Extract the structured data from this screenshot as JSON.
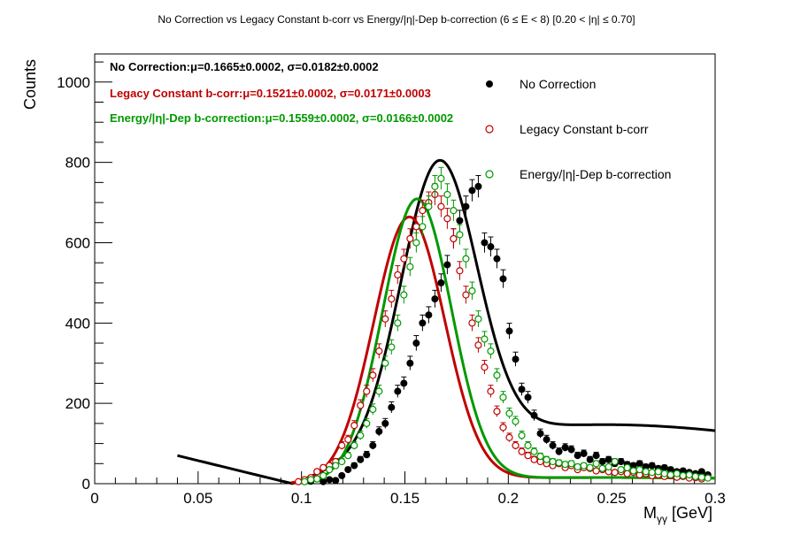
{
  "chart_data": {
    "type": "scatter",
    "title": "No Correction vs Legacy Constant b-corr vs Energy/|η|-Dep b-correction   (6 ≤ E < 8)   [0.20 < |η| ≤ 0.70]",
    "xlabel": "M",
    "xlabel_sub": "γγ",
    "xlabel_unit": " [GeV]",
    "ylabel": "Counts",
    "xlim": [
      0,
      0.3
    ],
    "ylim": [
      0,
      1070
    ],
    "x_ticks": [
      {
        "value": 0,
        "label": "0"
      },
      {
        "value": 0.05,
        "label": "0.05"
      },
      {
        "value": 0.1,
        "label": "0.1"
      },
      {
        "value": 0.15,
        "label": "0.15"
      },
      {
        "value": 0.2,
        "label": "0.2"
      },
      {
        "value": 0.25,
        "label": "0.25"
      },
      {
        "value": 0.3,
        "label": "0.3"
      }
    ],
    "y_ticks": [
      {
        "value": 0,
        "label": "0"
      },
      {
        "value": 200,
        "label": "200"
      },
      {
        "value": 400,
        "label": "400"
      },
      {
        "value": 600,
        "label": "600"
      },
      {
        "value": 800,
        "label": "800"
      },
      {
        "value": 1000,
        "label": "1000"
      }
    ],
    "legend_position": "top-right",
    "series": [
      {
        "name": "No Correction",
        "color": "#000000",
        "marker": "filled-circle",
        "stat_label": "No Correction:",
        "stat_mu": "μ=0.1665±0.0002, ",
        "stat_sigma": "σ=0.0182±0.0002",
        "fit": {
          "amp": 700,
          "mu": 0.1665,
          "sigma": 0.0182,
          "bkg_a0": 240,
          "bkg_a1": -440,
          "bkg_x0": 0.0956,
          "bkg_x1": 0.3,
          "x_start": 0.04,
          "x_end": 0.3
        },
        "points": [
          {
            "x": 0.1015,
            "y": 8
          },
          {
            "x": 0.1045,
            "y": 6
          },
          {
            "x": 0.1075,
            "y": 12
          },
          {
            "x": 0.1105,
            "y": 5
          },
          {
            "x": 0.1135,
            "y": 10
          },
          {
            "x": 0.1165,
            "y": 8
          },
          {
            "x": 0.1195,
            "y": 20
          },
          {
            "x": 0.1225,
            "y": 35
          },
          {
            "x": 0.1255,
            "y": 45
          },
          {
            "x": 0.1285,
            "y": 60
          },
          {
            "x": 0.1315,
            "y": 72
          },
          {
            "x": 0.1345,
            "y": 95
          },
          {
            "x": 0.1375,
            "y": 130
          },
          {
            "x": 0.1405,
            "y": 150
          },
          {
            "x": 0.1435,
            "y": 190
          },
          {
            "x": 0.1465,
            "y": 230
          },
          {
            "x": 0.1495,
            "y": 250
          },
          {
            "x": 0.1525,
            "y": 300
          },
          {
            "x": 0.1555,
            "y": 350
          },
          {
            "x": 0.1585,
            "y": 400
          },
          {
            "x": 0.1615,
            "y": 420
          },
          {
            "x": 0.1645,
            "y": 460
          },
          {
            "x": 0.1675,
            "y": 500
          },
          {
            "x": 0.1705,
            "y": 545
          },
          {
            "x": 0.1735,
            "y": 610
          },
          {
            "x": 0.1765,
            "y": 655
          },
          {
            "x": 0.1795,
            "y": 690
          },
          {
            "x": 0.1825,
            "y": 730
          },
          {
            "x": 0.1855,
            "y": 740
          },
          {
            "x": 0.1885,
            "y": 600
          },
          {
            "x": 0.1915,
            "y": 590
          },
          {
            "x": 0.1945,
            "y": 560
          },
          {
            "x": 0.1975,
            "y": 510
          },
          {
            "x": 0.2005,
            "y": 380
          },
          {
            "x": 0.2035,
            "y": 310
          },
          {
            "x": 0.2065,
            "y": 235
          },
          {
            "x": 0.2095,
            "y": 215
          },
          {
            "x": 0.2125,
            "y": 170
          },
          {
            "x": 0.2155,
            "y": 125
          },
          {
            "x": 0.2185,
            "y": 110
          },
          {
            "x": 0.2215,
            "y": 95
          },
          {
            "x": 0.2245,
            "y": 80
          },
          {
            "x": 0.2275,
            "y": 90
          },
          {
            "x": 0.2305,
            "y": 85
          },
          {
            "x": 0.2335,
            "y": 70
          },
          {
            "x": 0.2365,
            "y": 75
          },
          {
            "x": 0.2395,
            "y": 60
          },
          {
            "x": 0.2425,
            "y": 70
          },
          {
            "x": 0.2455,
            "y": 55
          },
          {
            "x": 0.2485,
            "y": 60
          },
          {
            "x": 0.2515,
            "y": 50
          },
          {
            "x": 0.2545,
            "y": 55
          },
          {
            "x": 0.2575,
            "y": 48
          },
          {
            "x": 0.2605,
            "y": 45
          },
          {
            "x": 0.2635,
            "y": 50
          },
          {
            "x": 0.2665,
            "y": 42
          },
          {
            "x": 0.2695,
            "y": 45
          },
          {
            "x": 0.2725,
            "y": 38
          },
          {
            "x": 0.2755,
            "y": 40
          },
          {
            "x": 0.2785,
            "y": 35
          },
          {
            "x": 0.2815,
            "y": 30
          },
          {
            "x": 0.2845,
            "y": 32
          },
          {
            "x": 0.2875,
            "y": 28
          },
          {
            "x": 0.2905,
            "y": 25
          },
          {
            "x": 0.2935,
            "y": 30
          },
          {
            "x": 0.2965,
            "y": 22
          }
        ]
      },
      {
        "name": "Legacy Constant b-corr",
        "color": "#c00000",
        "marker": "open-circle",
        "stat_label": "Legacy Constant b-corr:",
        "stat_mu": "μ=0.1521±0.0002, ",
        "stat_sigma": "σ=0.0171±0.0003",
        "fit": {
          "amp": 655,
          "mu": 0.1521,
          "sigma": 0.0171,
          "bkg_a0": 25,
          "bkg_a1": 0,
          "bkg_x0": 0.095,
          "bkg_x1": 0.3,
          "x_start": 0.095,
          "x_end": 0.3
        },
        "points": [
          {
            "x": 0.0985,
            "y": 5
          },
          {
            "x": 0.1015,
            "y": 10
          },
          {
            "x": 0.1045,
            "y": 15
          },
          {
            "x": 0.1075,
            "y": 30
          },
          {
            "x": 0.1105,
            "y": 40
          },
          {
            "x": 0.1135,
            "y": 45
          },
          {
            "x": 0.1165,
            "y": 55
          },
          {
            "x": 0.1195,
            "y": 95
          },
          {
            "x": 0.1225,
            "y": 110
          },
          {
            "x": 0.1255,
            "y": 145
          },
          {
            "x": 0.1285,
            "y": 195
          },
          {
            "x": 0.1315,
            "y": 230
          },
          {
            "x": 0.1345,
            "y": 270
          },
          {
            "x": 0.1375,
            "y": 330
          },
          {
            "x": 0.1405,
            "y": 410
          },
          {
            "x": 0.1435,
            "y": 460
          },
          {
            "x": 0.1465,
            "y": 520
          },
          {
            "x": 0.1495,
            "y": 560
          },
          {
            "x": 0.1525,
            "y": 610
          },
          {
            "x": 0.1555,
            "y": 640
          },
          {
            "x": 0.1585,
            "y": 680
          },
          {
            "x": 0.1615,
            "y": 700
          },
          {
            "x": 0.1645,
            "y": 720
          },
          {
            "x": 0.1675,
            "y": 690
          },
          {
            "x": 0.1705,
            "y": 660
          },
          {
            "x": 0.1735,
            "y": 610
          },
          {
            "x": 0.1765,
            "y": 530
          },
          {
            "x": 0.1795,
            "y": 470
          },
          {
            "x": 0.1825,
            "y": 400
          },
          {
            "x": 0.1855,
            "y": 345
          },
          {
            "x": 0.1885,
            "y": 290
          },
          {
            "x": 0.1915,
            "y": 230
          },
          {
            "x": 0.1945,
            "y": 180
          },
          {
            "x": 0.1975,
            "y": 140
          },
          {
            "x": 0.2005,
            "y": 115
          },
          {
            "x": 0.2035,
            "y": 95
          },
          {
            "x": 0.2065,
            "y": 80
          },
          {
            "x": 0.2095,
            "y": 70
          },
          {
            "x": 0.2125,
            "y": 60
          },
          {
            "x": 0.2155,
            "y": 55
          },
          {
            "x": 0.2185,
            "y": 50
          },
          {
            "x": 0.2215,
            "y": 45
          },
          {
            "x": 0.2245,
            "y": 50
          },
          {
            "x": 0.2275,
            "y": 40
          },
          {
            "x": 0.2305,
            "y": 45
          },
          {
            "x": 0.2335,
            "y": 35
          },
          {
            "x": 0.2365,
            "y": 40
          },
          {
            "x": 0.2395,
            "y": 38
          },
          {
            "x": 0.2425,
            "y": 32
          },
          {
            "x": 0.2455,
            "y": 35
          },
          {
            "x": 0.2485,
            "y": 30
          },
          {
            "x": 0.2515,
            "y": 28
          },
          {
            "x": 0.2545,
            "y": 30
          },
          {
            "x": 0.2575,
            "y": 25
          },
          {
            "x": 0.2605,
            "y": 28
          },
          {
            "x": 0.2635,
            "y": 22
          },
          {
            "x": 0.2665,
            "y": 25
          },
          {
            "x": 0.2695,
            "y": 20
          },
          {
            "x": 0.2725,
            "y": 22
          },
          {
            "x": 0.2755,
            "y": 18
          },
          {
            "x": 0.2785,
            "y": 20
          },
          {
            "x": 0.2815,
            "y": 16
          },
          {
            "x": 0.2845,
            "y": 18
          },
          {
            "x": 0.2875,
            "y": 14
          },
          {
            "x": 0.2905,
            "y": 15
          },
          {
            "x": 0.2935,
            "y": 12
          }
        ]
      },
      {
        "name": "Energy/|η|-Dep b-correction",
        "color": "#009900",
        "marker": "open-circle",
        "stat_label": "Energy/|η|-Dep b-correction:",
        "stat_mu": "μ=0.1559±0.0002, ",
        "stat_sigma": "σ=0.0166±0.0002",
        "fit": {
          "amp": 700,
          "mu": 0.1559,
          "sigma": 0.0166,
          "bkg_a0": 25,
          "bkg_a1": 0,
          "bkg_x0": 0.1,
          "bkg_x1": 0.3,
          "x_start": 0.1,
          "x_end": 0.3
        },
        "points": [
          {
            "x": 0.1015,
            "y": 5
          },
          {
            "x": 0.1045,
            "y": 10
          },
          {
            "x": 0.1075,
            "y": 12
          },
          {
            "x": 0.1105,
            "y": 20
          },
          {
            "x": 0.1135,
            "y": 35
          },
          {
            "x": 0.1165,
            "y": 45
          },
          {
            "x": 0.1195,
            "y": 55
          },
          {
            "x": 0.1225,
            "y": 70
          },
          {
            "x": 0.1255,
            "y": 95
          },
          {
            "x": 0.1285,
            "y": 120
          },
          {
            "x": 0.1315,
            "y": 150
          },
          {
            "x": 0.1345,
            "y": 185
          },
          {
            "x": 0.1375,
            "y": 230
          },
          {
            "x": 0.1405,
            "y": 300
          },
          {
            "x": 0.1435,
            "y": 340
          },
          {
            "x": 0.1465,
            "y": 400
          },
          {
            "x": 0.1495,
            "y": 470
          },
          {
            "x": 0.1525,
            "y": 540
          },
          {
            "x": 0.1555,
            "y": 600
          },
          {
            "x": 0.1585,
            "y": 640
          },
          {
            "x": 0.1615,
            "y": 690
          },
          {
            "x": 0.1645,
            "y": 740
          },
          {
            "x": 0.1675,
            "y": 760
          },
          {
            "x": 0.1705,
            "y": 720
          },
          {
            "x": 0.1735,
            "y": 680
          },
          {
            "x": 0.1765,
            "y": 620
          },
          {
            "x": 0.1795,
            "y": 560
          },
          {
            "x": 0.1825,
            "y": 480
          },
          {
            "x": 0.1855,
            "y": 410
          },
          {
            "x": 0.1885,
            "y": 360
          },
          {
            "x": 0.1915,
            "y": 330
          },
          {
            "x": 0.1945,
            "y": 270
          },
          {
            "x": 0.1975,
            "y": 215
          },
          {
            "x": 0.2005,
            "y": 175
          },
          {
            "x": 0.2035,
            "y": 155
          },
          {
            "x": 0.2065,
            "y": 120
          },
          {
            "x": 0.2095,
            "y": 95
          },
          {
            "x": 0.2125,
            "y": 80
          },
          {
            "x": 0.2155,
            "y": 68
          },
          {
            "x": 0.2185,
            "y": 60
          },
          {
            "x": 0.2215,
            "y": 55
          },
          {
            "x": 0.2245,
            "y": 52
          },
          {
            "x": 0.2275,
            "y": 48
          },
          {
            "x": 0.2305,
            "y": 50
          },
          {
            "x": 0.2335,
            "y": 42
          },
          {
            "x": 0.2365,
            "y": 45
          },
          {
            "x": 0.2395,
            "y": 40
          },
          {
            "x": 0.2425,
            "y": 50
          },
          {
            "x": 0.2455,
            "y": 38
          },
          {
            "x": 0.2485,
            "y": 42
          },
          {
            "x": 0.2515,
            "y": 55
          },
          {
            "x": 0.2545,
            "y": 35
          },
          {
            "x": 0.2575,
            "y": 40
          },
          {
            "x": 0.2605,
            "y": 32
          },
          {
            "x": 0.2635,
            "y": 35
          },
          {
            "x": 0.2665,
            "y": 30
          },
          {
            "x": 0.2695,
            "y": 28
          },
          {
            "x": 0.2725,
            "y": 30
          },
          {
            "x": 0.2755,
            "y": 25
          },
          {
            "x": 0.2785,
            "y": 22
          },
          {
            "x": 0.2815,
            "y": 25
          },
          {
            "x": 0.2845,
            "y": 20
          },
          {
            "x": 0.2875,
            "y": 22
          },
          {
            "x": 0.2905,
            "y": 18
          },
          {
            "x": 0.2935,
            "y": 16
          },
          {
            "x": 0.2965,
            "y": 14
          }
        ]
      }
    ]
  }
}
